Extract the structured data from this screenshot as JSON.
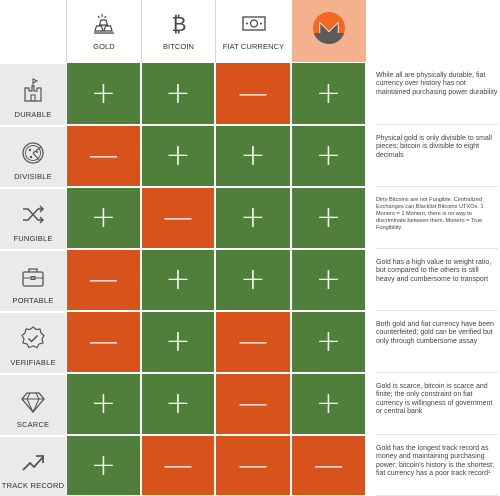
{
  "headers": [
    {
      "label": "GOLD",
      "icon": "gold-bars-icon"
    },
    {
      "label": "BITCOIN",
      "icon": "bitcoin-icon"
    },
    {
      "label": "FIAT CURRENCY",
      "icon": "banknote-icon"
    },
    {
      "label": "",
      "icon": "monero-logo-icon"
    }
  ],
  "rows": [
    {
      "label": "DURABLE",
      "icon": "castle-icon",
      "cells": [
        "+",
        "+",
        "—",
        "+"
      ],
      "note": "While all are physically durable, fiat currency over history has not maintained purchasing power durability"
    },
    {
      "label": "DIVISIBLE",
      "icon": "pizza-icon",
      "cells": [
        "—",
        "+",
        "+",
        "+"
      ],
      "note": "Physical gold is only divisible to small pieces; bitcoin is divisible to eight decimals"
    },
    {
      "label": "FUNGIBLE",
      "icon": "shuffle-icon",
      "cells": [
        "+",
        "—",
        "+",
        "+"
      ],
      "note": "Dirty Bitcoins are not Fungible. Centralized Exchanges can Blacklist Bitcoins UTXOs. 1 Monero = 1 Monero, there is no way to discriminate between them. Monero = True Fungibility."
    },
    {
      "label": "PORTABLE",
      "icon": "briefcase-icon",
      "cells": [
        "—",
        "+",
        "+",
        "+"
      ],
      "note": "Gold has a high value to weight ratio, but compared to the others is still heavy and cumbersome to transport"
    },
    {
      "label": "VERIFIABLE",
      "icon": "verified-badge-icon",
      "cells": [
        "—",
        "+",
        "—",
        "+"
      ],
      "note": "Both gold and fiat currency have been counterfeited; gold can be verified but only through cumbersome assay"
    },
    {
      "label": "SCARCE",
      "icon": "diamond-icon",
      "cells": [
        "+",
        "+",
        "—",
        "+"
      ],
      "note": "Gold is scarce, bitcoin is scarce and finite; the only constraint on fiat currency is willingness of government or central bank"
    },
    {
      "label": "TRACK RECORD",
      "icon": "trend-up-icon",
      "cells": [
        "+",
        "—",
        "—",
        "—"
      ],
      "note": "Gold has the longest track record as money and maintaining purchasing power; bitcoin's history is the shortest; fiat currency has a poor track record¹"
    }
  ],
  "colors": {
    "positive": "#4f7f3a",
    "negative": "#d7531b",
    "monero_orange": "#f26822"
  }
}
